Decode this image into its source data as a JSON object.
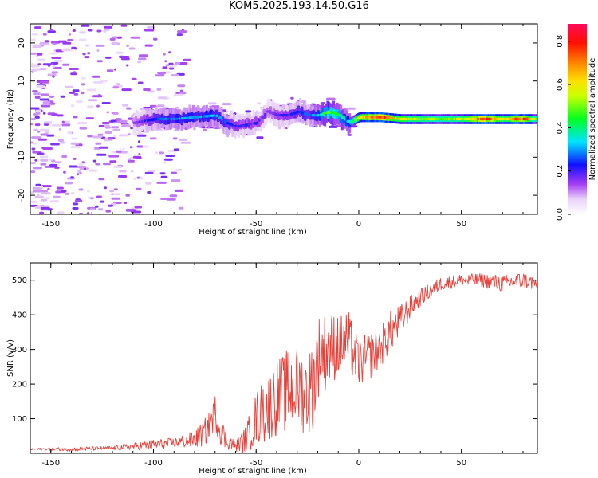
{
  "page": {
    "title": "KOM5.2025.193.14.50.G16"
  },
  "chart_data": [
    {
      "type": "heatmap",
      "title": "KOM5.2025.193.14.50.G16",
      "xlabel": "Height of straight line (km)",
      "ylabel": "Frequency (Hz)",
      "xlim": [
        -160,
        87
      ],
      "ylim": [
        -25,
        25
      ],
      "xticks": [
        -150,
        -100,
        -50,
        0,
        50
      ],
      "yticks": [
        -20,
        -10,
        0,
        10,
        20
      ],
      "colorbar": {
        "label": "Normalized spectral amplitude",
        "range": [
          0,
          0.88
        ],
        "ticks": [
          0.0,
          0.2,
          0.4,
          0.6,
          0.8
        ]
      },
      "ridge": {
        "x": [
          -110,
          -100,
          -90,
          -80,
          -70,
          -65,
          -60,
          -50,
          -45,
          -40,
          -35,
          -30,
          -25,
          -20,
          -15,
          -10,
          -5,
          0,
          10,
          20,
          30,
          40,
          50,
          60,
          70,
          80,
          85
        ],
        "freq": [
          -1,
          0,
          0,
          0.5,
          1,
          -1,
          -2,
          -1,
          2,
          1,
          1,
          2,
          1,
          1,
          2,
          1,
          -1,
          0.5,
          0.5,
          0,
          0,
          0,
          0,
          0,
          0,
          0,
          0
        ],
        "amplitude": [
          0.15,
          0.25,
          0.3,
          0.3,
          0.3,
          0.25,
          0.2,
          0.2,
          0.15,
          0.2,
          0.2,
          0.25,
          0.25,
          0.35,
          0.5,
          0.4,
          0.35,
          0.65,
          0.8,
          0.6,
          0.55,
          0.5,
          0.55,
          0.8,
          0.6,
          0.8,
          0.5
        ]
      }
    },
    {
      "type": "line",
      "xlabel": "Height of straight line (km)",
      "ylabel": "SNR (v/v)",
      "xlim": [
        -160,
        87
      ],
      "ylim": [
        0,
        550
      ],
      "xticks": [
        -150,
        -100,
        -50,
        0,
        50
      ],
      "yticks": [
        100,
        200,
        300,
        400,
        500
      ],
      "series": [
        {
          "color": "#e8413a",
          "x": [
            -160,
            -140,
            -120,
            -110,
            -100,
            -90,
            -80,
            -75,
            -72,
            -70,
            -68,
            -65,
            -62,
            -60,
            -55,
            -50,
            -45,
            -40,
            -35,
            -30,
            -25,
            -22,
            -20,
            -15,
            -10,
            -5,
            0,
            5,
            10,
            15,
            20,
            25,
            30,
            40,
            50,
            60,
            70,
            80,
            87
          ],
          "y": [
            12,
            12,
            15,
            20,
            25,
            30,
            40,
            60,
            90,
            120,
            80,
            40,
            30,
            20,
            40,
            100,
            130,
            160,
            180,
            190,
            170,
            200,
            280,
            300,
            320,
            320,
            260,
            280,
            300,
            350,
            380,
            420,
            450,
            490,
            500,
            500,
            490,
            500,
            490
          ],
          "noise": [
            3,
            6,
            6,
            10,
            15,
            15,
            25,
            40,
            40,
            50,
            50,
            30,
            20,
            15,
            40,
            80,
            100,
            110,
            120,
            120,
            120,
            140,
            120,
            110,
            100,
            90,
            70,
            70,
            60,
            60,
            50,
            35,
            25,
            20,
            18,
            20,
            25,
            25,
            20
          ]
        }
      ]
    }
  ]
}
